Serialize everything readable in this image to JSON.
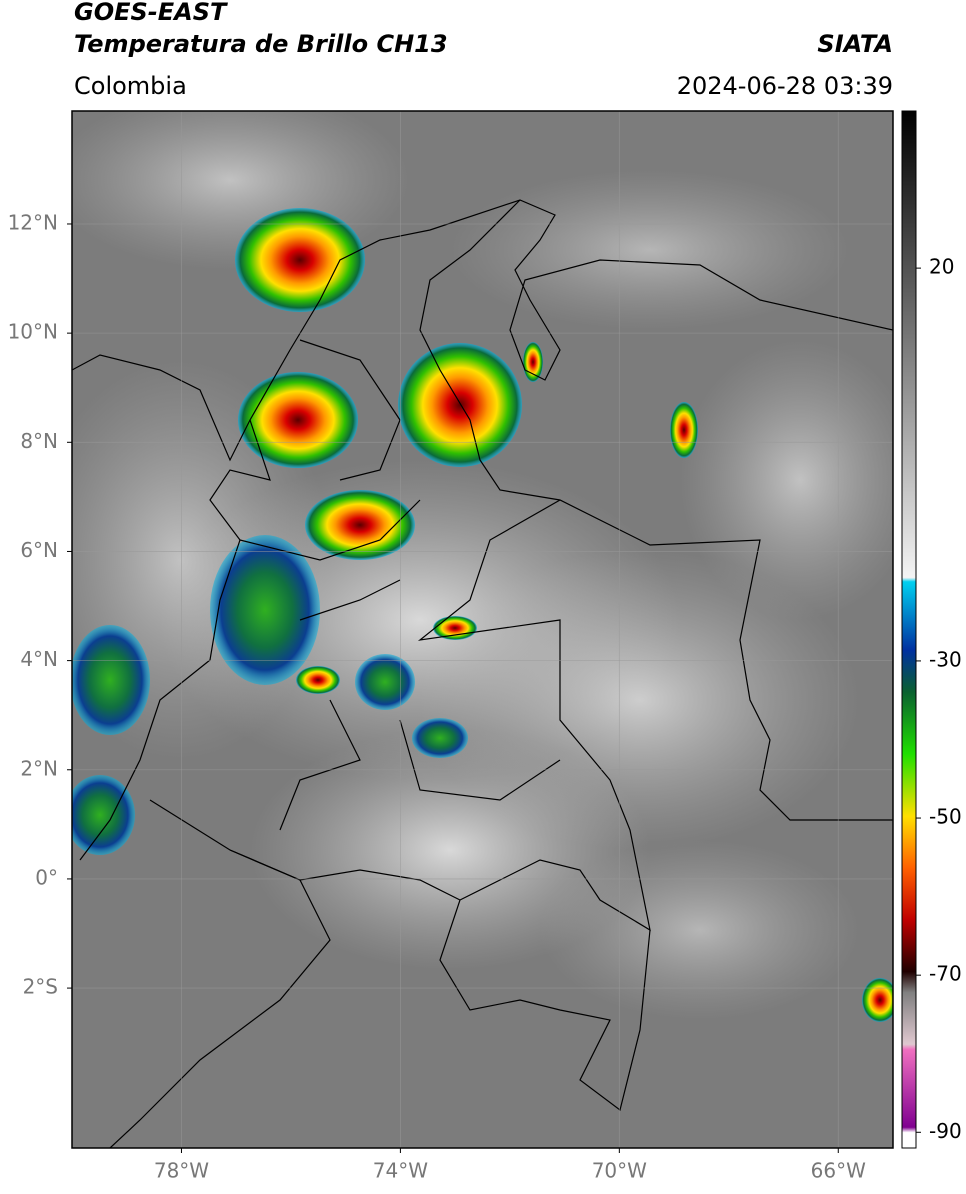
{
  "header": {
    "satellite": "GOES-EAST",
    "product": "Temperatura de Brillo CH13",
    "region": "Colombia",
    "source": "SIATA",
    "datetime": "2024-06-28 03:39"
  },
  "map": {
    "lon_range": [
      -80,
      -65
    ],
    "lat_range": [
      -4.93,
      14.07
    ],
    "lon_ticks": [
      {
        "value": -78,
        "label": "78°W"
      },
      {
        "value": -74,
        "label": "74°W"
      },
      {
        "value": -70,
        "label": "70°W"
      },
      {
        "value": -66,
        "label": "66°W"
      }
    ],
    "lat_ticks": [
      {
        "value": 12,
        "label": "12°N"
      },
      {
        "value": 10,
        "label": "10°N"
      },
      {
        "value": 8,
        "label": "8°N"
      },
      {
        "value": 6,
        "label": "6°N"
      },
      {
        "value": 4,
        "label": "4°N"
      },
      {
        "value": 2,
        "label": "2°N"
      },
      {
        "value": 0,
        "label": "0°"
      },
      {
        "value": -2,
        "label": "2°S"
      }
    ]
  },
  "colorbar": {
    "range": [
      -92,
      40
    ],
    "ticks": [
      20,
      -30,
      -50,
      -70,
      -90
    ]
  }
}
